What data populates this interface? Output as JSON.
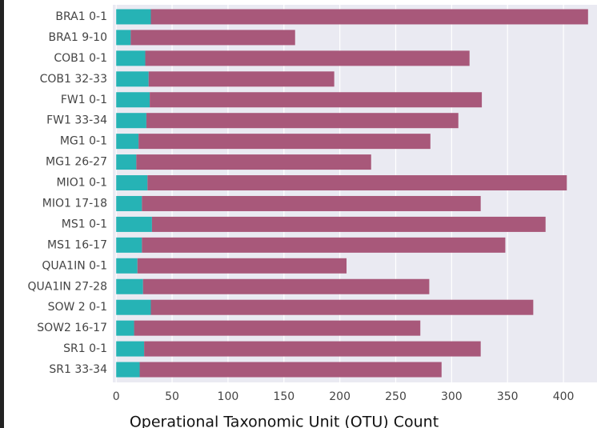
{
  "chart_data": {
    "type": "stacked-barh",
    "x_label": "Operational Taxonomic Unit (OTU) Count",
    "categories": [
      "BRA1 0-1",
      "BRA1 9-10",
      "COB1 0-1",
      "COB1 32-33",
      "FW1 0-1",
      "FW1 33-34",
      "MG1 0-1",
      "MG1 26-27",
      "MIO1 0-1",
      "MIO1 17-18",
      "MS1 0-1",
      "MS1 16-17",
      "QUA1IN 0-1",
      "QUA1IN 27-28",
      "SOW 2 0-1",
      "SOW2 16-17",
      "SR1 0-1",
      "SR1 33-34"
    ],
    "series": [
      {
        "color": "#26b3b5",
        "values": [
          31,
          13,
          26,
          29,
          30,
          27,
          20,
          18,
          28,
          23,
          32,
          23,
          19,
          24,
          31,
          16,
          25,
          21
        ]
      },
      {
        "color": "#a8587a",
        "values": [
          391,
          147,
          290,
          166,
          297,
          279,
          261,
          210,
          375,
          303,
          352,
          325,
          187,
          256,
          342,
          256,
          301,
          270
        ]
      }
    ],
    "xlim": [
      -3,
      430
    ],
    "xticks": [
      0,
      50,
      100,
      150,
      200,
      250,
      300,
      350,
      400
    ],
    "grid": true
  }
}
